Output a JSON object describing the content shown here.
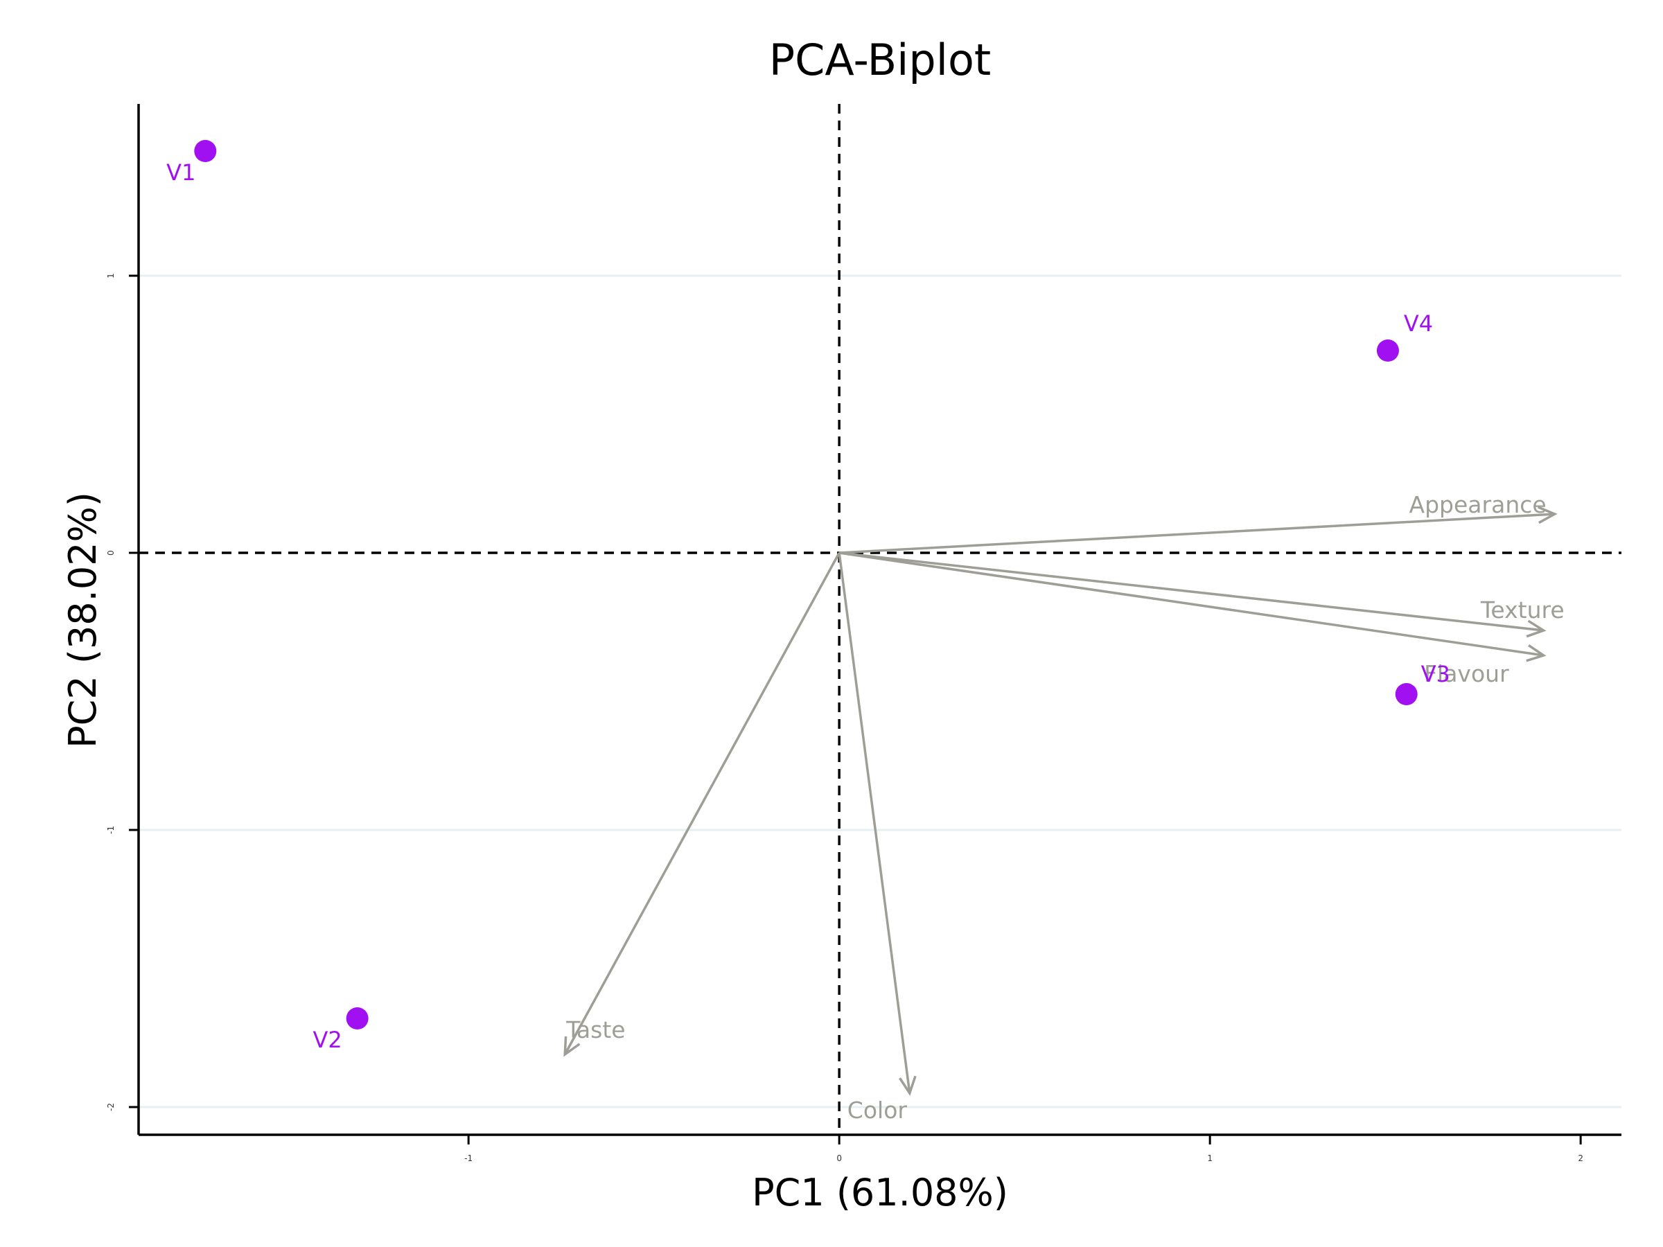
{
  "chart_data": {
    "type": "scatter",
    "title": "PCA-Biplot",
    "xlabel": "PC1 (61.08%)",
    "ylabel": "PC2 (38.02%)",
    "xlim": [
      -1.89,
      2.11
    ],
    "ylim": [
      -2.1,
      1.62
    ],
    "xticks": [
      -1,
      0,
      1,
      2
    ],
    "yticks": [
      -2,
      -1,
      0,
      1
    ],
    "xtick_labels": [
      "-1",
      "0",
      "1",
      "2"
    ],
    "ytick_labels": [
      "-2",
      "-1",
      "0",
      "1"
    ],
    "grid": "horizontal",
    "reference_lines": {
      "x": 0,
      "y": 0,
      "style": "dashed"
    },
    "colors": {
      "points": "#a010f0",
      "vectors": "#9e9e96",
      "grid": "#e6f0f0",
      "axes": "#000000"
    },
    "points": [
      {
        "label": "V1",
        "x": -1.71,
        "y": 1.45
      },
      {
        "label": "V2",
        "x": -1.3,
        "y": -1.68
      },
      {
        "label": "V3",
        "x": 1.53,
        "y": -0.51
      },
      {
        "label": "V4",
        "x": 1.48,
        "y": 0.73
      }
    ],
    "vectors": [
      {
        "label": "Appearance",
        "x": 1.93,
        "y": 0.14
      },
      {
        "label": "Texture",
        "x": 1.9,
        "y": -0.28
      },
      {
        "label": "Flavour",
        "x": 1.9,
        "y": -0.37
      },
      {
        "label": "Taste",
        "x": -0.74,
        "y": -1.81
      },
      {
        "label": "Color",
        "x": 0.19,
        "y": -1.95
      }
    ]
  }
}
